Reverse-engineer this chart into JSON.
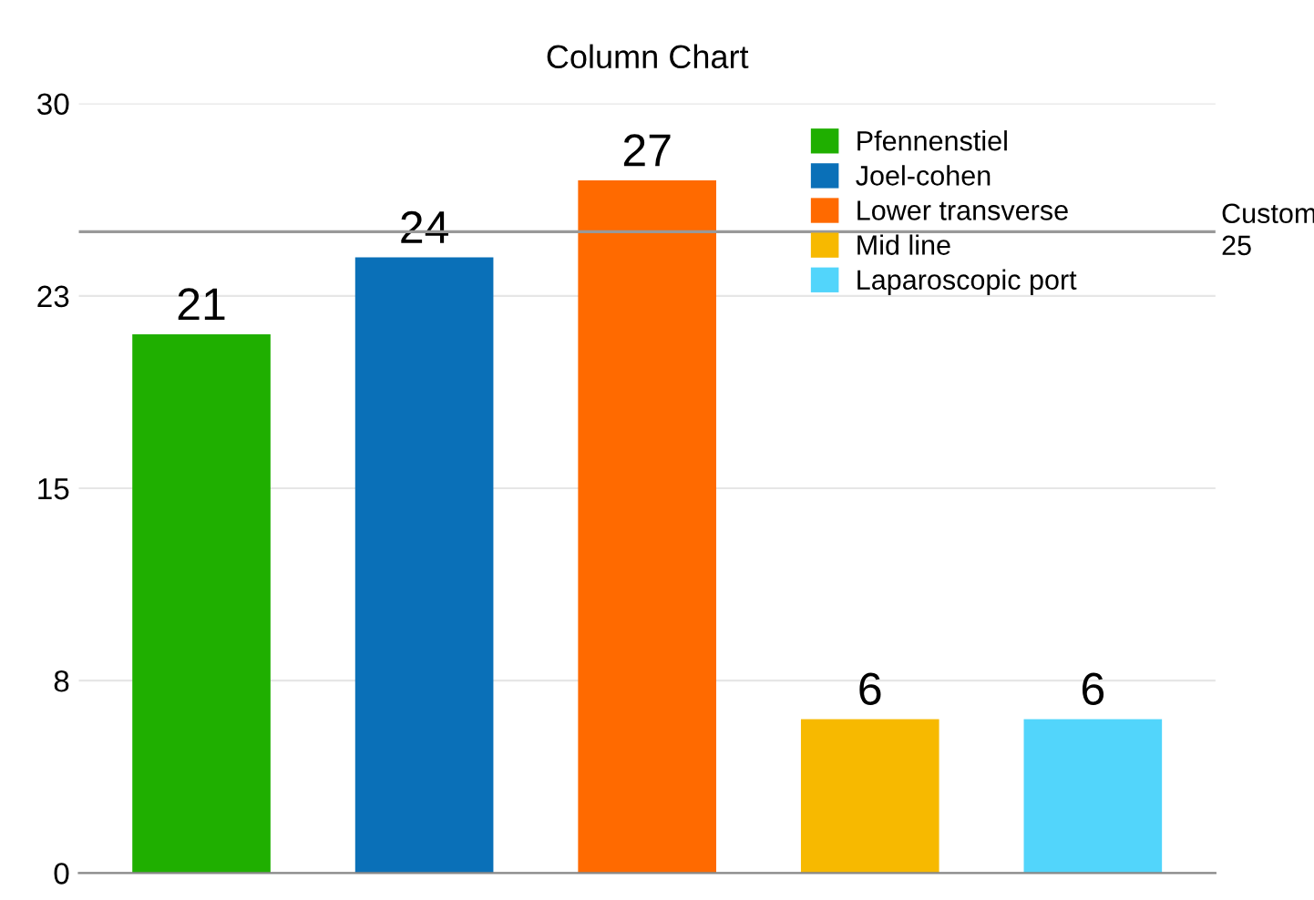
{
  "chart_data": {
    "type": "bar",
    "title": "Column Chart",
    "categories": [
      null,
      null,
      null,
      null,
      null
    ],
    "series": [
      {
        "name": "Pfennenstiel",
        "color": "#1faf00",
        "values": [
          21,
          null,
          null,
          null,
          null
        ]
      },
      {
        "name": "Joel-cohen",
        "color": "#0a70b8",
        "values": [
          null,
          24,
          null,
          null,
          null
        ]
      },
      {
        "name": "Lower transverse",
        "color": "#ff6a00",
        "values": [
          null,
          null,
          27,
          null,
          null
        ]
      },
      {
        "name": "Mid line",
        "color": "#f7b900",
        "values": [
          null,
          null,
          null,
          6,
          null
        ]
      },
      {
        "name": "Laparoscopic port",
        "color": "#52d5fb",
        "values": [
          null,
          null,
          null,
          null,
          6
        ]
      }
    ],
    "ylim": [
      0,
      30
    ],
    "yticks": [
      0,
      {
        "value": 7.5,
        "label": "8"
      },
      15,
      {
        "value": 22.5,
        "label": "23"
      },
      30
    ],
    "grid": "y",
    "data_labels": true,
    "legend": "top right",
    "tick_labels": "y",
    "ref_lines": [
      {
        "axis": "y",
        "value": 25,
        "label": "Custom\n25",
        "color": "#999999"
      }
    ]
  }
}
